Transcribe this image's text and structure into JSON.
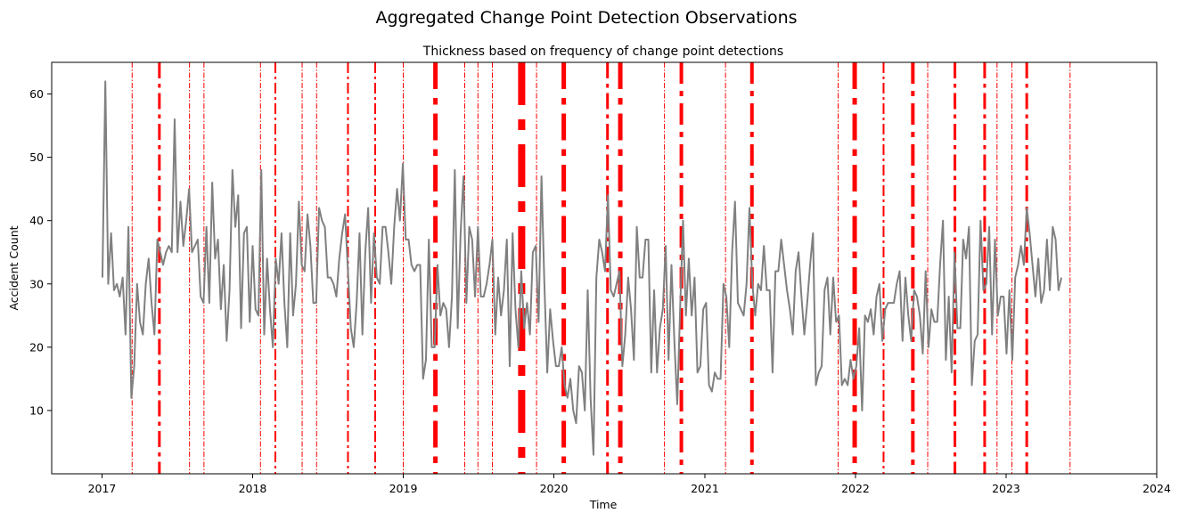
{
  "figure": {
    "suptitle": "Aggregated Change Point Detection Observations"
  },
  "chart_data": {
    "type": "line",
    "title": "Thickness based on frequency of change point detections",
    "xlabel": "Time",
    "ylabel": "Accident Count",
    "xlim": [
      "2016-09-01",
      "2024-01-01"
    ],
    "ylim": [
      0,
      65
    ],
    "x_ticks": [
      "2017",
      "2018",
      "2019",
      "2020",
      "2021",
      "2022",
      "2023",
      "2024"
    ],
    "y_ticks": [
      10,
      20,
      30,
      40,
      50,
      60
    ],
    "grid": false,
    "legend": "none",
    "series": [
      {
        "color": "#808080",
        "start": "2017-01-02",
        "interval_days": 7,
        "values": [
          31,
          62,
          30,
          38,
          29,
          30,
          28,
          31,
          22,
          39,
          12,
          17,
          30,
          24,
          22,
          30,
          34,
          27,
          22,
          37,
          35,
          33,
          35,
          36,
          35,
          56,
          35,
          43,
          36,
          40,
          45,
          35,
          36,
          37,
          28,
          27,
          39,
          27,
          46,
          34,
          37,
          26,
          33,
          21,
          29,
          48,
          39,
          44,
          23,
          38,
          39,
          24,
          36,
          26,
          25,
          48,
          22,
          34,
          26,
          20,
          34,
          30,
          38,
          27,
          20,
          38,
          25,
          30,
          43,
          33,
          32,
          41,
          36,
          27,
          27,
          42,
          40,
          39,
          31,
          31,
          30,
          28,
          34,
          38,
          41,
          32,
          23,
          20,
          27,
          38,
          22,
          35,
          42,
          27,
          38,
          31,
          30,
          39,
          39,
          35,
          30,
          39,
          45,
          40,
          49,
          37,
          37,
          33,
          32,
          33,
          33,
          15,
          18,
          37,
          20,
          20,
          33,
          25,
          27,
          26,
          20,
          28,
          48,
          23,
          38,
          47,
          27,
          39,
          37,
          28,
          39,
          28,
          28,
          30,
          33,
          37,
          22,
          31,
          25,
          29,
          37,
          17,
          38,
          26,
          20,
          32,
          23,
          27,
          22,
          35,
          36,
          24,
          47,
          30,
          16,
          26,
          21,
          17,
          17,
          20,
          14,
          12,
          15,
          10,
          8,
          17,
          16,
          10,
          29,
          12,
          3,
          31,
          37,
          35,
          32,
          44,
          29,
          28,
          30,
          32,
          17,
          22,
          31,
          26,
          18,
          39,
          31,
          31,
          37,
          37,
          16,
          29,
          16,
          23,
          26,
          36,
          18,
          33,
          21,
          11,
          26,
          40,
          25,
          34,
          25,
          31,
          16,
          17,
          26,
          27,
          14,
          13,
          16,
          15,
          15,
          30,
          28,
          20,
          35,
          43,
          27,
          26,
          25,
          30,
          42,
          30,
          25,
          30,
          29,
          36,
          29,
          29,
          16,
          32,
          32,
          37,
          33,
          29,
          26,
          22,
          32,
          35,
          28,
          22,
          27,
          33,
          38,
          14,
          16,
          17,
          29,
          31,
          22,
          31,
          24,
          25,
          14,
          15,
          14,
          18,
          15,
          17,
          23,
          10,
          25,
          24,
          26,
          22,
          28,
          30,
          21,
          26,
          27,
          27,
          27,
          30,
          32,
          21,
          31,
          25,
          21,
          29,
          28,
          25,
          19,
          32,
          20,
          26,
          24,
          24,
          33,
          40,
          18,
          28,
          16,
          35,
          23,
          23,
          37,
          34,
          39,
          14,
          21,
          22,
          40,
          29,
          30,
          39,
          22,
          37,
          25,
          28,
          28,
          19,
          29,
          18,
          31,
          33,
          36,
          33,
          42,
          38,
          33,
          28,
          34,
          27,
          29,
          37,
          29,
          39,
          37,
          29,
          31
        ]
      }
    ],
    "change_points": [
      {
        "date": "2017-03-15",
        "width": 1
      },
      {
        "date": "2017-05-20",
        "width": 3
      },
      {
        "date": "2017-08-01",
        "width": 1
      },
      {
        "date": "2017-09-05",
        "width": 1
      },
      {
        "date": "2018-01-20",
        "width": 1
      },
      {
        "date": "2018-02-25",
        "width": 2
      },
      {
        "date": "2018-05-01",
        "width": 1
      },
      {
        "date": "2018-06-05",
        "width": 1
      },
      {
        "date": "2018-08-20",
        "width": 2
      },
      {
        "date": "2018-10-25",
        "width": 2
      },
      {
        "date": "2019-01-01",
        "width": 1
      },
      {
        "date": "2019-03-20",
        "width": 5
      },
      {
        "date": "2019-05-30",
        "width": 1
      },
      {
        "date": "2019-07-01",
        "width": 1
      },
      {
        "date": "2019-08-05",
        "width": 1
      },
      {
        "date": "2019-10-15",
        "width": 8
      },
      {
        "date": "2019-11-20",
        "width": 1
      },
      {
        "date": "2020-01-25",
        "width": 5
      },
      {
        "date": "2020-05-10",
        "width": 3
      },
      {
        "date": "2020-06-10",
        "width": 5
      },
      {
        "date": "2020-09-25",
        "width": 1
      },
      {
        "date": "2020-11-05",
        "width": 4
      },
      {
        "date": "2021-02-20",
        "width": 1
      },
      {
        "date": "2021-04-25",
        "width": 4
      },
      {
        "date": "2021-11-20",
        "width": 1
      },
      {
        "date": "2021-12-30",
        "width": 5
      },
      {
        "date": "2022-03-10",
        "width": 2
      },
      {
        "date": "2022-05-20",
        "width": 4
      },
      {
        "date": "2022-06-25",
        "width": 1
      },
      {
        "date": "2022-08-30",
        "width": 3
      },
      {
        "date": "2022-11-10",
        "width": 3
      },
      {
        "date": "2022-12-10",
        "width": 1
      },
      {
        "date": "2023-01-15",
        "width": 1
      },
      {
        "date": "2023-02-20",
        "width": 3
      },
      {
        "date": "2023-06-05",
        "width": 1
      }
    ],
    "colors": {
      "line": "#808080",
      "change_point": "#ff0000"
    }
  }
}
